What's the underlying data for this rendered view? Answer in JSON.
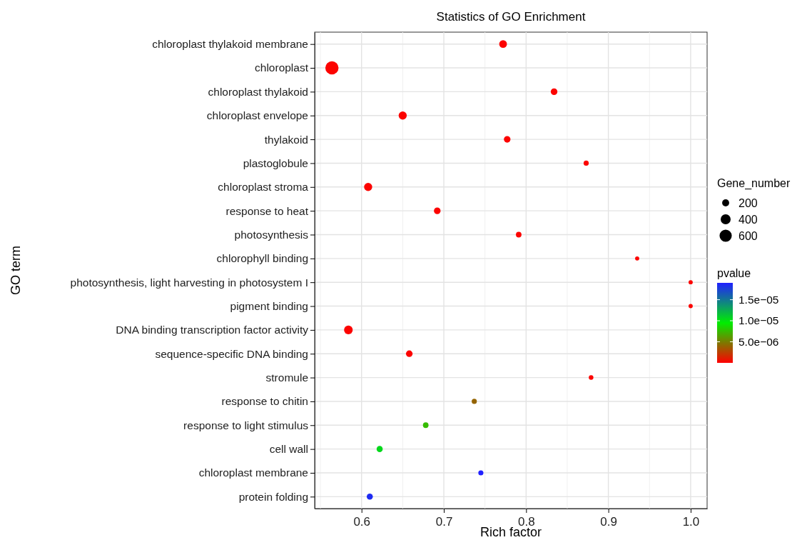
{
  "chart_data": {
    "type": "bubble",
    "orientation": "horizontal",
    "title": "Statistics of GO Enrichment",
    "xlabel": "Rich factor",
    "ylabel": "GO term",
    "legend_title": "Gene_number",
    "clabel": "pvalue",
    "categories": [
      "chloroplast thylakoid membrane",
      "chloroplast",
      "chloroplast thylakoid",
      "chloroplast envelope",
      "thylakoid",
      "plastoglobule",
      "chloroplast stroma",
      "response to heat",
      "photosynthesis",
      "chlorophyll binding",
      "photosynthesis, light harvesting in photosystem I",
      "pigment binding",
      "DNA binding transcription factor activity",
      "sequence-specific DNA binding",
      "stromule",
      "response to chitin",
      "response to light stimulus",
      "cell wall",
      "chloroplast membrane",
      "protein folding"
    ],
    "values": [
      0.772,
      0.564,
      0.834,
      0.65,
      0.777,
      0.873,
      0.608,
      0.692,
      0.791,
      0.935,
      1.0,
      1.0,
      0.584,
      0.658,
      0.879,
      0.737,
      0.678,
      0.622,
      0.745,
      0.61
    ],
    "sizes": [
      240,
      700,
      175,
      265,
      175,
      105,
      265,
      175,
      125,
      70,
      70,
      70,
      300,
      175,
      85,
      105,
      125,
      150,
      105,
      150
    ],
    "cvalues": [
      1e-07,
      1e-07,
      1e-07,
      1e-07,
      1e-07,
      1e-07,
      1e-07,
      1e-07,
      1e-07,
      1e-07,
      1e-07,
      1e-07,
      1e-07,
      1e-07,
      1e-07,
      4e-06,
      7.5e-06,
      1.05e-05,
      1.9e-05,
      1.85e-05
    ],
    "size_legend": [
      200,
      400,
      600
    ],
    "clim": [
      0,
      1.9e-05
    ],
    "cticks": [
      {
        "value": 5e-06,
        "label": "5.0e−06"
      },
      {
        "value": 1e-05,
        "label": "1.0e−05"
      },
      {
        "value": 1.5e-05,
        "label": "1.5e−05"
      }
    ],
    "xlim": [
      0.543,
      1.02
    ],
    "xticks": [
      {
        "value": 0.6,
        "label": "0.6"
      },
      {
        "value": 0.7,
        "label": "0.7"
      },
      {
        "value": 0.8,
        "label": "0.8"
      },
      {
        "value": 0.9,
        "label": "0.9"
      },
      {
        "value": 1.0,
        "label": "1.0"
      }
    ],
    "grid": true,
    "marker": "circle"
  }
}
